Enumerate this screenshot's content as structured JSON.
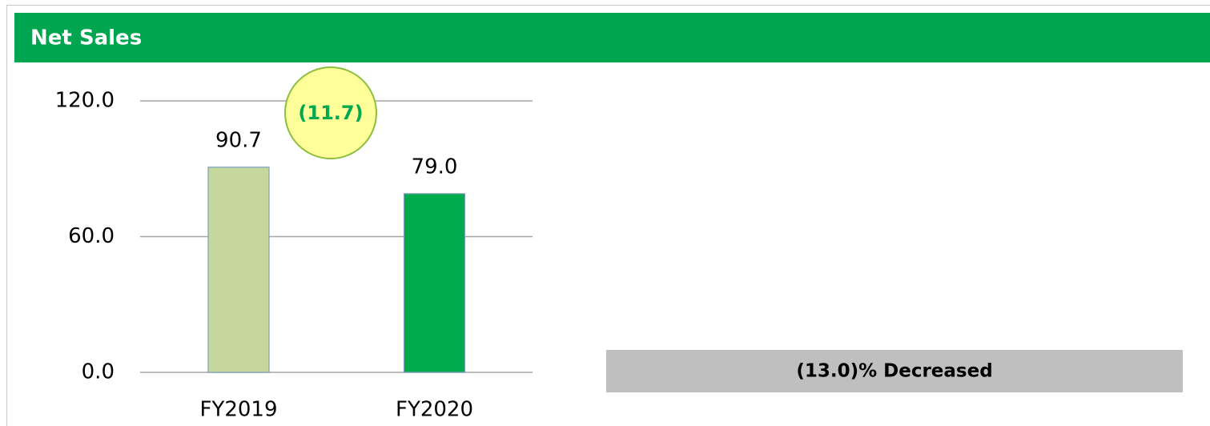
{
  "chart_data": {
    "type": "bar",
    "title": "Net Sales",
    "categories": [
      "FY2019",
      "FY2020"
    ],
    "values": [
      90.7,
      79.0
    ],
    "value_labels": [
      "90.7",
      "79.0"
    ],
    "colors": [
      "#c5d79c",
      "#00ab4e"
    ],
    "ylim": [
      0,
      120
    ],
    "yticks": [
      {
        "value": 0,
        "label": "0.0"
      },
      {
        "value": 60,
        "label": "60.0"
      },
      {
        "value": 120,
        "label": "120.0"
      }
    ],
    "grid": true,
    "annotations": [
      "(11.7)",
      "(13.0)% Decreased"
    ]
  }
}
